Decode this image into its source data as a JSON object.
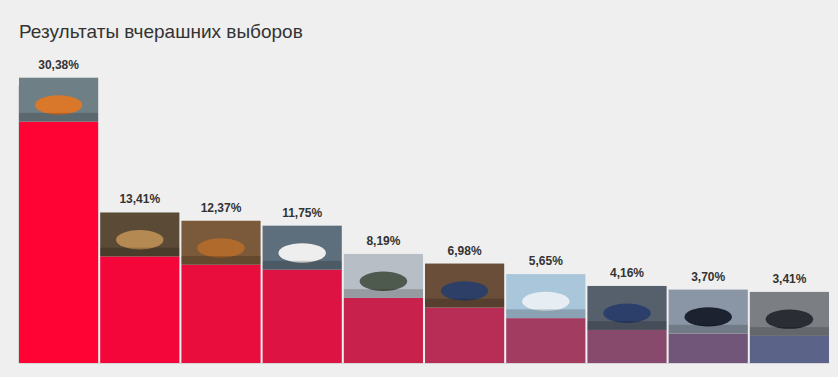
{
  "chart_data": {
    "type": "bar",
    "title": "Результаты вчерашних выборов",
    "categories": [
      null,
      null,
      null,
      null,
      null,
      null,
      null,
      null,
      null,
      null
    ],
    "values": [
      30.38,
      13.41,
      12.37,
      11.75,
      8.19,
      6.98,
      5.65,
      4.16,
      3.7,
      3.41
    ],
    "value_labels": [
      "30,38%",
      "13,41%",
      "12,37%",
      "11,75%",
      "8,19%",
      "6,98%",
      "5,65%",
      "4,16%",
      "3,70%",
      "3,41%"
    ],
    "colors": [
      "#ff0335",
      "#f5063a",
      "#e90d3e",
      "#dd1443",
      "#c8214b",
      "#b82d55",
      "#a23c61",
      "#884a6c",
      "#71567a",
      "#5c6388"
    ],
    "ylim": [
      0,
      35
    ],
    "data_labels": true,
    "tick_labels": false
  }
}
